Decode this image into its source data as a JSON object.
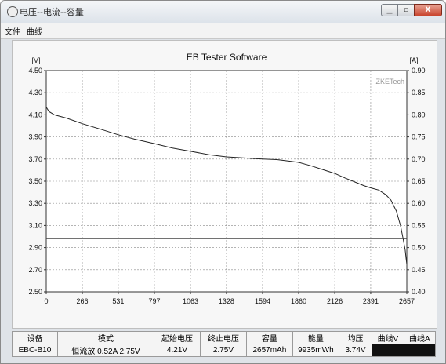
{
  "window": {
    "title": "电压--电流--容量",
    "controls": {
      "minimize": "▁",
      "maximize": "▫",
      "close": "X"
    }
  },
  "menu": {
    "file": "文件",
    "curve": "曲线"
  },
  "chart_data": {
    "type": "line",
    "title": "EB Tester Software",
    "watermark": "ZKETech",
    "left_axis_unit": "[V]",
    "right_axis_unit": "[A]",
    "ylim": [
      2.5,
      4.5
    ],
    "y_ticks": [
      "4.50",
      "4.30",
      "4.10",
      "3.90",
      "3.70",
      "3.50",
      "3.30",
      "3.10",
      "2.90",
      "2.70",
      "2.50"
    ],
    "y2lim": [
      0.4,
      0.9
    ],
    "y2_ticks": [
      "0.90",
      "0.85",
      "0.80",
      "0.75",
      "0.70",
      "0.65",
      "0.60",
      "0.55",
      "0.50",
      "0.45",
      "0.40"
    ],
    "xlim": [
      0,
      2657
    ],
    "x_ticks": [
      "0",
      "266",
      "531",
      "797",
      "1063",
      "1328",
      "1594",
      "1860",
      "2126",
      "2391",
      "2657"
    ],
    "grid": true,
    "series": [
      {
        "axis": "left",
        "color": "#222222",
        "x": [
          0,
          20,
          60,
          150,
          266,
          400,
          531,
          650,
          797,
          930,
          1063,
          1200,
          1328,
          1460,
          1594,
          1700,
          1800,
          1860,
          1950,
          2050,
          2126,
          2200,
          2280,
          2340,
          2391,
          2450,
          2500,
          2540,
          2580,
          2610,
          2630,
          2645,
          2652,
          2657
        ],
        "y": [
          4.17,
          4.13,
          4.1,
          4.07,
          4.02,
          3.97,
          3.92,
          3.88,
          3.84,
          3.8,
          3.77,
          3.74,
          3.72,
          3.71,
          3.7,
          3.695,
          3.68,
          3.67,
          3.64,
          3.6,
          3.57,
          3.53,
          3.49,
          3.46,
          3.44,
          3.42,
          3.38,
          3.33,
          3.23,
          3.1,
          2.98,
          2.88,
          2.8,
          2.75
        ]
      },
      {
        "axis": "right",
        "color": "#444444",
        "x": [
          0,
          2657
        ],
        "y": [
          0.52,
          0.52
        ]
      }
    ]
  },
  "table": {
    "headers": [
      "设备",
      "模式",
      "起始电压",
      "终止电压",
      "容量",
      "能量",
      "均压",
      "曲线V",
      "曲线A"
    ],
    "values": [
      "EBC-B10",
      "恒流放  0.52A  2.75V",
      "4.21V",
      "2.75V",
      "2657mAh",
      "9935mWh",
      "3.74V",
      "",
      ""
    ],
    "swatch_colors": [
      "#111111",
      "#111111"
    ]
  }
}
